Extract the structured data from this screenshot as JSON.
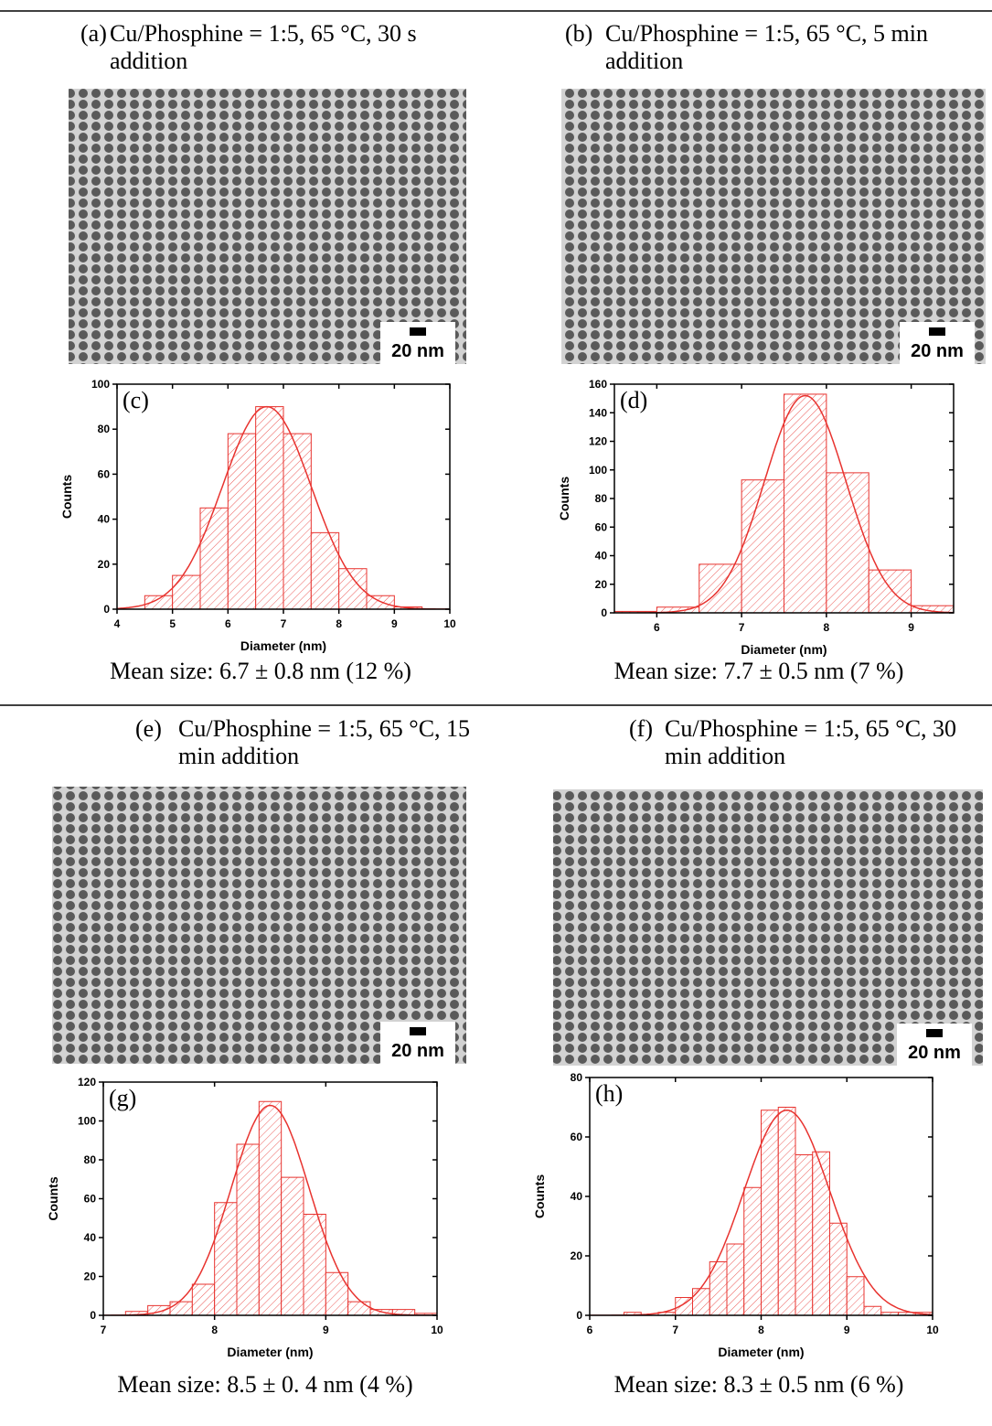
{
  "figure": {
    "panels": [
      {
        "label": "(a)",
        "caption": "Cu/Phosphine = 1:5, 65 °C, 30 s addition",
        "scale_bar": "20 nm"
      },
      {
        "label": "(b)",
        "caption": "Cu/Phosphine = 1:5, 65 °C, 5 min addition",
        "scale_bar": "20 nm"
      },
      {
        "label": "(e)",
        "caption": "Cu/Phosphine = 1:5, 65 °C, 15 min addition",
        "scale_bar": "20 nm"
      },
      {
        "label": "(f)",
        "caption": "Cu/Phosphine = 1:5, 65 °C, 30 min addition",
        "scale_bar": "20 nm"
      }
    ]
  },
  "chart_data": [
    {
      "type": "histogram",
      "label": "(c)",
      "x_label": "Diameter (nm)",
      "y_label": "Counts",
      "color": "#e8332f",
      "bins": [
        4.5,
        5,
        5.5,
        6,
        6.5,
        7,
        7.5,
        8,
        8.5,
        9,
        9.5
      ],
      "values": [
        6,
        15,
        45,
        78,
        90,
        78,
        34,
        18,
        6,
        1
      ],
      "xlim": [
        4,
        10
      ],
      "xticks": [
        4,
        5,
        6,
        7,
        8,
        9,
        10
      ],
      "ylim": [
        0,
        100
      ],
      "yticks": [
        0,
        20,
        40,
        60,
        80,
        100
      ],
      "fit": {
        "center": 6.7,
        "sigma": 0.8,
        "peak": 90
      },
      "caption": "Mean size: 6.7 ± 0.8 nm (12 %)"
    },
    {
      "type": "histogram",
      "label": "(d)",
      "x_label": "Diameter (nm)",
      "y_label": "Counts",
      "color": "#e8332f",
      "bins": [
        5.5,
        6,
        6.5,
        7,
        7.5,
        8,
        8.5,
        9,
        9.5
      ],
      "values": [
        1,
        4,
        34,
        93,
        153,
        98,
        30,
        5
      ],
      "xlim": [
        5.5,
        9.5
      ],
      "xticks": [
        6,
        7,
        8,
        9
      ],
      "ylim": [
        0,
        160
      ],
      "yticks": [
        0,
        20,
        40,
        60,
        80,
        100,
        120,
        140,
        160
      ],
      "fit": {
        "center": 7.75,
        "sigma": 0.48,
        "peak": 152
      },
      "caption": "Mean size: 7.7 ± 0.5 nm (7 %)"
    },
    {
      "type": "histogram",
      "label": "(g)",
      "x_label": "Diameter (nm)",
      "y_label": "Counts",
      "color": "#e8332f",
      "bins": [
        7.2,
        7.4,
        7.6,
        7.8,
        8.0,
        8.2,
        8.4,
        8.6,
        8.8,
        9.0,
        9.2,
        9.4,
        9.6,
        9.8,
        10.0
      ],
      "values": [
        2,
        5,
        7,
        16,
        58,
        88,
        110,
        71,
        52,
        22,
        7,
        3,
        3,
        1
      ],
      "xlim": [
        7,
        10
      ],
      "xticks": [
        7,
        8,
        9,
        10
      ],
      "ylim": [
        0,
        120
      ],
      "yticks": [
        0,
        20,
        40,
        60,
        80,
        100,
        120
      ],
      "fit": {
        "center": 8.5,
        "sigma": 0.35,
        "peak": 108
      },
      "caption": "Mean size: 8.5 ± 0. 4 nm (4 %)"
    },
    {
      "type": "histogram",
      "label": "(h)",
      "x_label": "Diameter (nm)",
      "y_label": "Counts",
      "color": "#e8332f",
      "bins": [
        6.4,
        6.6,
        6.8,
        7.0,
        7.2,
        7.4,
        7.6,
        7.8,
        8.0,
        8.2,
        8.4,
        8.6,
        8.8,
        9.0,
        9.2,
        9.4,
        9.6,
        9.8,
        10.0
      ],
      "values": [
        1,
        0,
        1,
        6,
        9,
        18,
        24,
        43,
        69,
        70,
        54,
        55,
        31,
        13,
        3,
        1,
        1,
        1
      ],
      "xlim": [
        6,
        10
      ],
      "xticks": [
        6,
        7,
        8,
        9,
        10
      ],
      "ylim": [
        0,
        80
      ],
      "yticks": [
        0,
        20,
        40,
        60,
        80
      ],
      "fit": {
        "center": 8.3,
        "sigma": 0.5,
        "peak": 69
      },
      "caption": "Mean size: 8.3 ± 0.5 nm (6 %)"
    }
  ]
}
